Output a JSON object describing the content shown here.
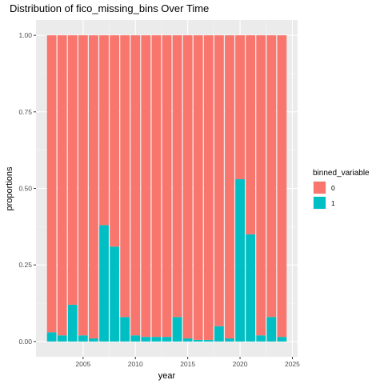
{
  "chart_data": {
    "type": "bar",
    "stacked": true,
    "title": "Distribution of fico_missing_bins Over Time",
    "xlabel": "year",
    "ylabel": "proportions",
    "xlim": [
      2000.5,
      2025.5
    ],
    "ylim": [
      -0.05,
      1.05
    ],
    "x_ticks": [
      {
        "value": 2005,
        "label": "2005"
      },
      {
        "value": 2010,
        "label": "2010"
      },
      {
        "value": 2015,
        "label": "2015"
      },
      {
        "value": 2020,
        "label": "2020"
      },
      {
        "value": 2025,
        "label": "2025"
      }
    ],
    "y_ticks": [
      {
        "value": 0,
        "label": "0.00"
      },
      {
        "value": 0.25,
        "label": "0.25"
      },
      {
        "value": 0.5,
        "label": "0.50"
      },
      {
        "value": 0.75,
        "label": "0.75"
      },
      {
        "value": 1,
        "label": "1.00"
      }
    ],
    "grid": true,
    "legend": {
      "title": "binned_variable",
      "placement": "right",
      "entries": [
        {
          "label": "0",
          "color": "#F8766D"
        },
        {
          "label": "1",
          "color": "#00BFC4"
        }
      ]
    },
    "x": [
      2002,
      2003,
      2004,
      2005,
      2006,
      2007,
      2008,
      2009,
      2010,
      2011,
      2012,
      2013,
      2014,
      2015,
      2016,
      2017,
      2018,
      2019,
      2020,
      2021,
      2022,
      2023,
      2024
    ],
    "series": [
      {
        "name": "1",
        "color": "#00BFC4",
        "values": [
          0.03,
          0.02,
          0.12,
          0.02,
          0.01,
          0.38,
          0.31,
          0.08,
          0.02,
          0.015,
          0.015,
          0.015,
          0.08,
          0.01,
          0.005,
          0.005,
          0.05,
          0.01,
          0.53,
          0.35,
          0.02,
          0.08,
          0.015
        ]
      },
      {
        "name": "0",
        "color": "#F8766D",
        "values": [
          0.97,
          0.98,
          0.88,
          0.98,
          0.99,
          0.62,
          0.69,
          0.92,
          0.98,
          0.985,
          0.985,
          0.985,
          0.92,
          0.99,
          0.995,
          0.995,
          0.95,
          0.99,
          0.47,
          0.65,
          0.98,
          0.92,
          0.985
        ]
      }
    ]
  }
}
